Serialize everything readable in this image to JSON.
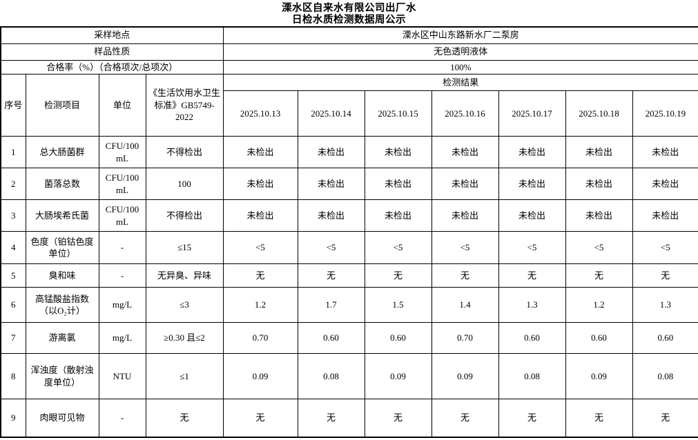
{
  "title": {
    "line1": "溧水区自来水有限公司出厂水",
    "line2": "日检水质检测数据周公示"
  },
  "info_rows": [
    {
      "label": "采样地点",
      "value": "溧水区中山东路新水厂二泵房"
    },
    {
      "label": "样品性质",
      "value": "无色透明液体"
    },
    {
      "label": "合格率（%）（合格项次/总项次）",
      "value": "100%"
    }
  ],
  "table": {
    "col_headers": {
      "seq": "序号",
      "item": "检测项目",
      "unit": "单位",
      "standard": "《生活饮用水卫生标准》GB5749-2022",
      "results_group": "检测结果",
      "dates": [
        "2025.10.13",
        "2025.10.14",
        "2025.10.15",
        "2025.10.16",
        "2025.10.17",
        "2025.10.18",
        "2025.10.19"
      ]
    },
    "rows": [
      {
        "seq": "1",
        "item": "总大肠菌群",
        "unit": "CFU/100 mL",
        "standard": "不得检出",
        "values": [
          "未检出",
          "未检出",
          "未检出",
          "未检出",
          "未检出",
          "未检出",
          "未检出"
        ]
      },
      {
        "seq": "2",
        "item": "菌落总数",
        "unit": "CFU/100 mL",
        "standard": "100",
        "values": [
          "未检出",
          "未检出",
          "未检出",
          "未检出",
          "未检出",
          "未检出",
          "未检出"
        ]
      },
      {
        "seq": "3",
        "item": "大肠埃希氏菌",
        "unit": "CFU/100 mL",
        "standard": "不得检出",
        "values": [
          "未检出",
          "未检出",
          "未检出",
          "未检出",
          "未检出",
          "未检出",
          "未检出"
        ]
      },
      {
        "seq": "4",
        "item": "色度（铂钴色度单位）",
        "unit": "-",
        "standard": "≤15",
        "values": [
          "<5",
          "<5",
          "<5",
          "<5",
          "<5",
          "<5",
          "<5"
        ]
      },
      {
        "seq": "5",
        "item": "臭和味",
        "unit": "-",
        "standard": "无异臭、异味",
        "values": [
          "无",
          "无",
          "无",
          "无",
          "无",
          "无",
          "无"
        ]
      },
      {
        "seq": "6",
        "item": "高锰酸盐指数（以O₂计）",
        "unit": "mg/L",
        "standard": "≤3",
        "values": [
          "1.2",
          "1.7",
          "1.5",
          "1.4",
          "1.3",
          "1.2",
          "1.3"
        ]
      },
      {
        "seq": "7",
        "item": "游离氯",
        "unit": "mg/L",
        "standard": "≥0.30 且≤2",
        "values": [
          "0.70",
          "0.60",
          "0.60",
          "0.70",
          "0.60",
          "0.60",
          "0.60"
        ]
      },
      {
        "seq": "8",
        "item": "浑浊度（散射浊度单位）",
        "unit": "NTU",
        "standard": "≤1",
        "values": [
          "0.09",
          "0.08",
          "0.09",
          "0.09",
          "0.08",
          "0.09",
          "0.08"
        ]
      },
      {
        "seq": "9",
        "item": "肉眼可见物",
        "unit": "-",
        "standard": "无",
        "values": [
          "无",
          "无",
          "无",
          "无",
          "无",
          "无",
          "无"
        ]
      }
    ]
  }
}
